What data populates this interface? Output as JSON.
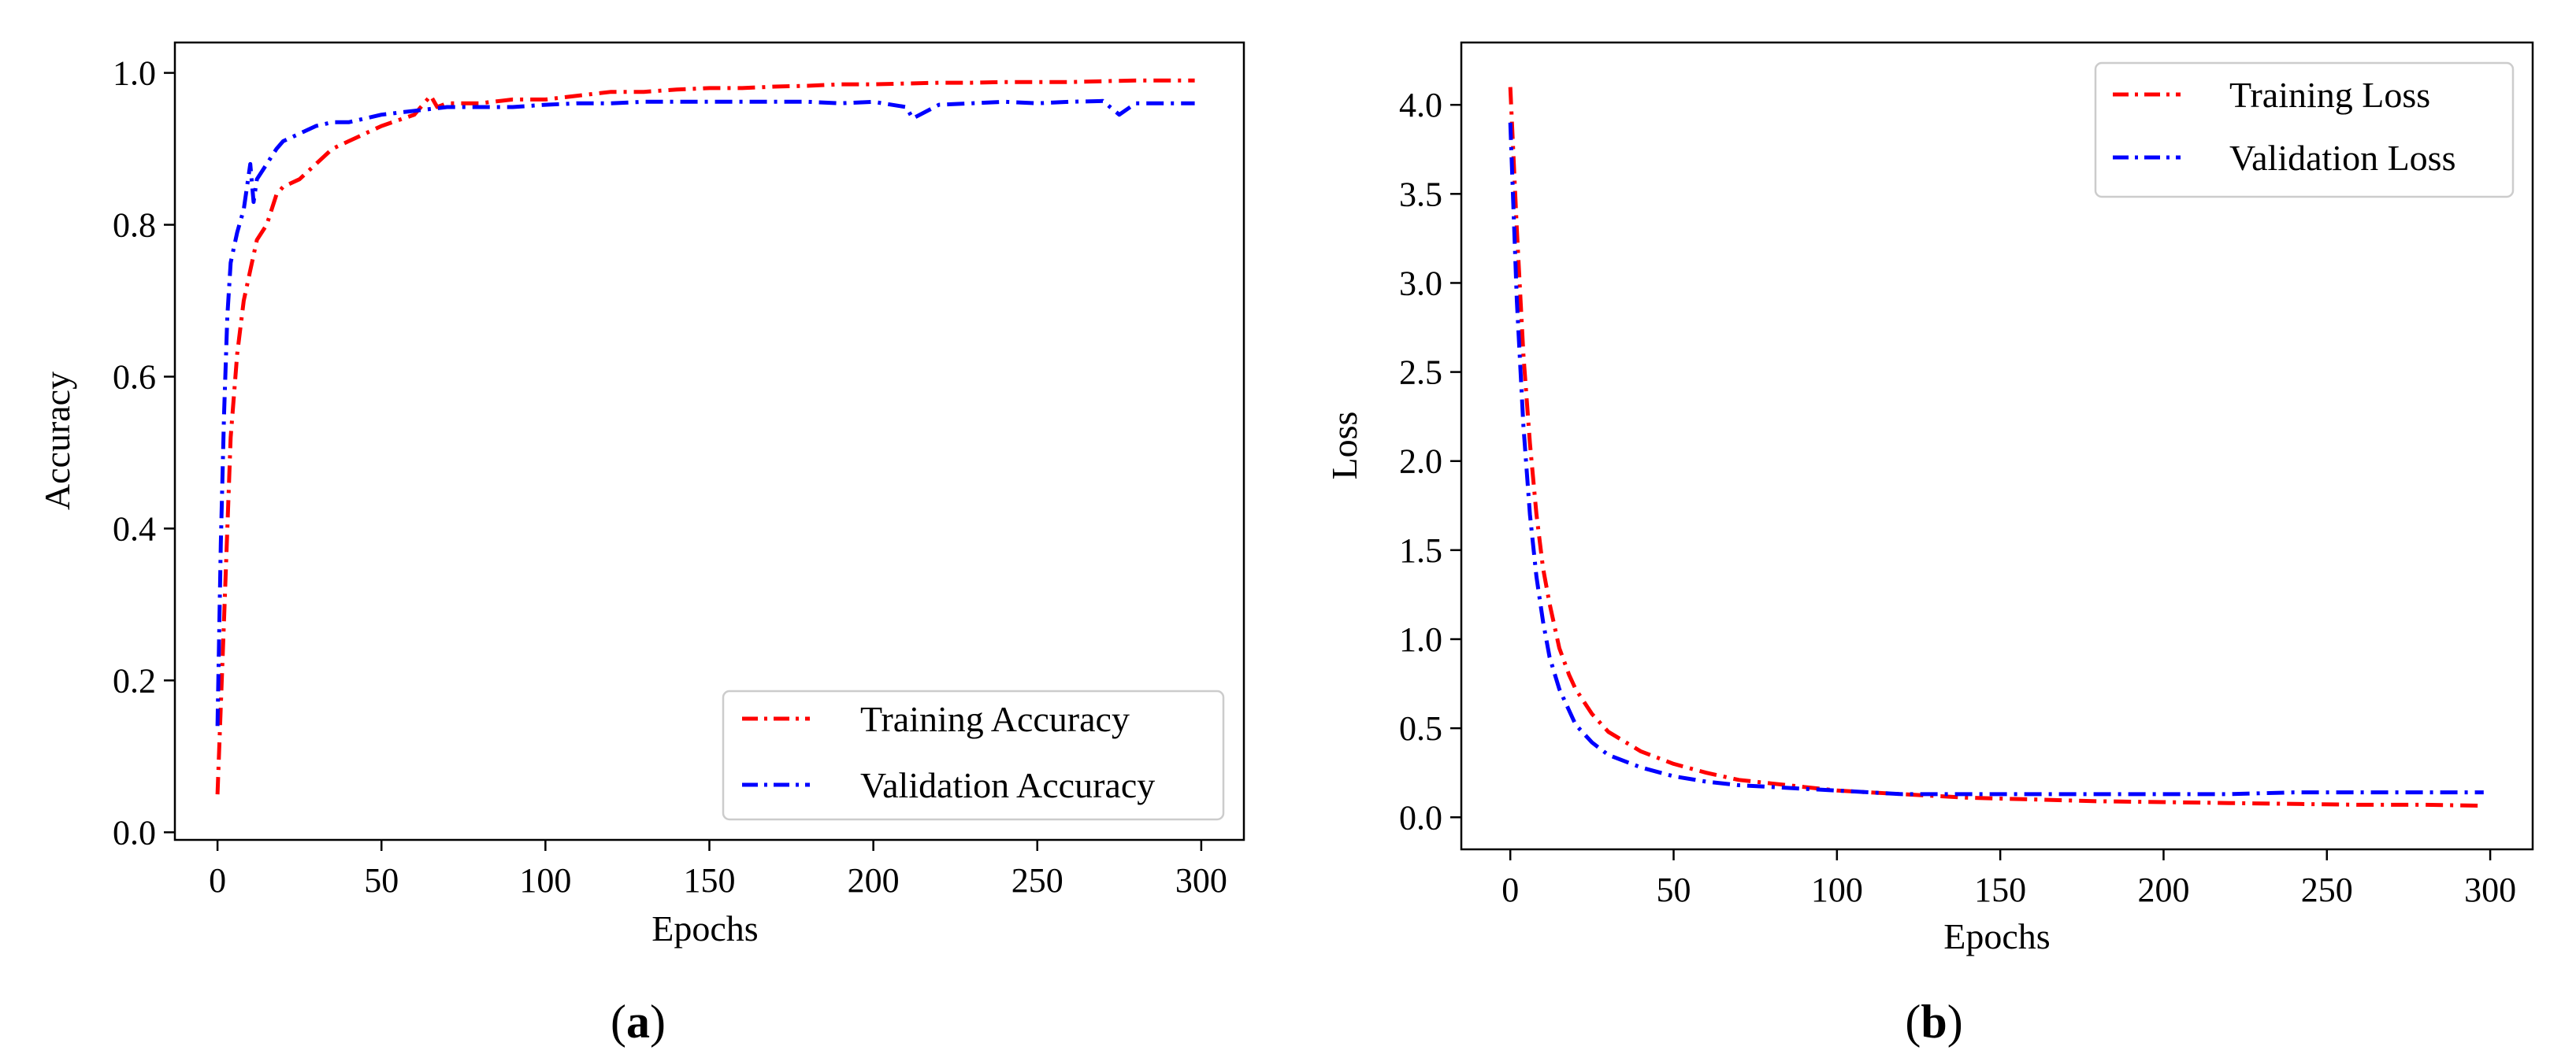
{
  "colors": {
    "training": "#ff0000",
    "validation": "#0000ff",
    "axis": "#000000",
    "legend_border": "#cccccc"
  },
  "chart_data": [
    {
      "id": "a",
      "type": "line",
      "caption_prefix": "(",
      "caption_letter": "a",
      "caption_suffix": ")",
      "title": "",
      "xlabel": "Epochs",
      "ylabel": "Accuracy",
      "xlim": [
        -13,
        313
      ],
      "ylim": [
        -0.01,
        1.04
      ],
      "xticks": [
        0,
        50,
        100,
        150,
        200,
        250,
        300
      ],
      "xtick_labels": [
        "0",
        "50",
        "100",
        "150",
        "200",
        "250",
        "300"
      ],
      "yticks": [
        0.0,
        0.2,
        0.4,
        0.6,
        0.8,
        1.0
      ],
      "ytick_labels": [
        "0.0",
        "0.2",
        "0.4",
        "0.6",
        "0.8",
        "1.0"
      ],
      "grid": false,
      "legend_position": "bottom-right",
      "series": [
        {
          "name": "Training Accuracy",
          "color_key": "training",
          "style": "dash-dot",
          "x": [
            0,
            2,
            4,
            6,
            8,
            10,
            12,
            15,
            18,
            20,
            25,
            30,
            35,
            40,
            50,
            60,
            65,
            67,
            70,
            80,
            90,
            100,
            110,
            120,
            130,
            140,
            150,
            160,
            170,
            180,
            190,
            200,
            210,
            220,
            230,
            240,
            250,
            260,
            270,
            280,
            290,
            298
          ],
          "y": [
            0.05,
            0.28,
            0.52,
            0.63,
            0.7,
            0.74,
            0.78,
            0.8,
            0.84,
            0.85,
            0.86,
            0.88,
            0.9,
            0.91,
            0.93,
            0.945,
            0.97,
            0.955,
            0.96,
            0.96,
            0.965,
            0.965,
            0.97,
            0.975,
            0.975,
            0.978,
            0.98,
            0.98,
            0.982,
            0.983,
            0.985,
            0.985,
            0.986,
            0.987,
            0.987,
            0.988,
            0.988,
            0.988,
            0.989,
            0.99,
            0.99,
            0.99
          ]
        },
        {
          "name": "Validation Accuracy",
          "color_key": "validation",
          "style": "dash-dot",
          "x": [
            0,
            1,
            2,
            3,
            4,
            5,
            6,
            8,
            10,
            11,
            12,
            15,
            18,
            20,
            25,
            30,
            35,
            40,
            50,
            60,
            70,
            80,
            90,
            100,
            110,
            120,
            130,
            140,
            150,
            160,
            170,
            180,
            190,
            200,
            210,
            212,
            220,
            230,
            240,
            250,
            260,
            270,
            275,
            280,
            290,
            298
          ],
          "y": [
            0.14,
            0.38,
            0.55,
            0.68,
            0.75,
            0.77,
            0.79,
            0.82,
            0.88,
            0.83,
            0.86,
            0.88,
            0.9,
            0.91,
            0.92,
            0.93,
            0.935,
            0.935,
            0.945,
            0.95,
            0.955,
            0.955,
            0.955,
            0.958,
            0.96,
            0.96,
            0.962,
            0.962,
            0.962,
            0.962,
            0.962,
            0.962,
            0.96,
            0.962,
            0.955,
            0.94,
            0.958,
            0.96,
            0.962,
            0.96,
            0.962,
            0.963,
            0.945,
            0.96,
            0.96,
            0.96
          ]
        }
      ]
    },
    {
      "id": "b",
      "type": "line",
      "caption_prefix": "(",
      "caption_letter": "b",
      "caption_suffix": ")",
      "title": "",
      "xlabel": "Epochs",
      "ylabel": "Loss",
      "xlim": [
        -15,
        313
      ],
      "ylim": [
        -0.18,
        4.35
      ],
      "xticks": [
        0,
        50,
        100,
        150,
        200,
        250,
        300
      ],
      "xtick_labels": [
        "0",
        "50",
        "100",
        "150",
        "200",
        "250",
        "300"
      ],
      "yticks": [
        0.0,
        0.5,
        1.0,
        1.5,
        2.0,
        2.5,
        3.0,
        3.5,
        4.0
      ],
      "ytick_labels": [
        "0.0",
        "0.5",
        "1.0",
        "1.5",
        "2.0",
        "2.5",
        "3.0",
        "3.5",
        "4.0"
      ],
      "grid": false,
      "legend_position": "top-right",
      "series": [
        {
          "name": "Training Loss",
          "color_key": "training",
          "style": "dash-dot",
          "x": [
            0,
            2,
            4,
            6,
            8,
            10,
            12,
            15,
            18,
            20,
            25,
            30,
            40,
            50,
            60,
            70,
            80,
            90,
            100,
            120,
            140,
            160,
            180,
            200,
            220,
            240,
            260,
            280,
            298
          ],
          "y": [
            4.1,
            3.3,
            2.6,
            2.1,
            1.7,
            1.4,
            1.2,
            0.95,
            0.8,
            0.72,
            0.58,
            0.48,
            0.37,
            0.3,
            0.25,
            0.21,
            0.19,
            0.17,
            0.15,
            0.13,
            0.11,
            0.1,
            0.09,
            0.085,
            0.08,
            0.075,
            0.07,
            0.07,
            0.065
          ]
        },
        {
          "name": "Validation Loss",
          "color_key": "validation",
          "style": "dash-dot",
          "x": [
            0,
            2,
            4,
            6,
            8,
            10,
            12,
            15,
            18,
            20,
            25,
            30,
            40,
            50,
            60,
            70,
            80,
            90,
            100,
            120,
            140,
            160,
            180,
            200,
            220,
            240,
            260,
            280,
            298
          ],
          "y": [
            3.9,
            2.9,
            2.2,
            1.7,
            1.35,
            1.1,
            0.9,
            0.72,
            0.6,
            0.52,
            0.42,
            0.35,
            0.28,
            0.23,
            0.2,
            0.18,
            0.17,
            0.16,
            0.15,
            0.13,
            0.13,
            0.13,
            0.13,
            0.13,
            0.13,
            0.14,
            0.14,
            0.14,
            0.14
          ]
        }
      ]
    }
  ]
}
